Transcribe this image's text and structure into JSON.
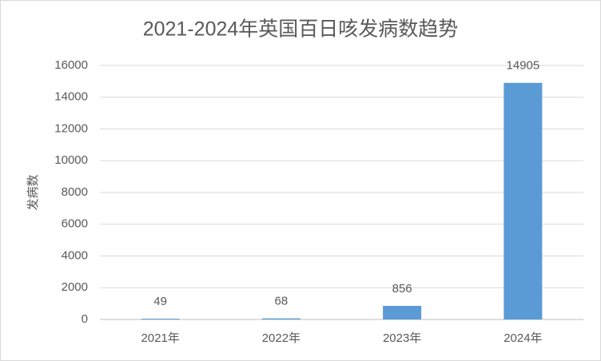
{
  "chart_data": {
    "type": "bar",
    "title": "2021-2024年英国百日咳发病数趋势",
    "y_label": "发病数",
    "categories": [
      "2021年",
      "2022年",
      "2023年",
      "2024年"
    ],
    "values": [
      49,
      68,
      856,
      14905
    ],
    "color": "#5b9bd5",
    "ylim": [
      0,
      16000
    ],
    "yticks": [
      0,
      2000,
      4000,
      6000,
      8000,
      10000,
      12000,
      14000,
      16000
    ],
    "grid": true
  }
}
